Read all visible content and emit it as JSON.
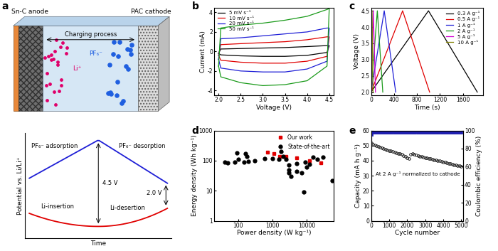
{
  "chart_data": [
    {
      "type": "diagram",
      "panel_label": "a",
      "labels": {
        "anode": "Sn-C anode",
        "cathode": "PAC cathode",
        "process": "Charging process",
        "cation": "Li⁺",
        "anion": "PF₆⁻"
      }
    },
    {
      "type": "diagram",
      "xlabel": "Time",
      "ylabel": "Potential vs. Li/Li⁺",
      "tick_labels": false,
      "annotations": {
        "anion_adsorption": "PF₆⁻ adsorption",
        "anion_desorption": "PF₆⁻ desorption",
        "li_insertion": "Li-insertion",
        "li_desertion": "Li-desertion",
        "upper_voltage": "4.5 V",
        "lower_voltage": "2.0 V"
      }
    },
    {
      "type": "line",
      "panel_label": "b",
      "xlabel": "Voltage (V)",
      "ylabel": "Current (mA)",
      "xlim": [
        1.9,
        4.6
      ],
      "xticks": [
        2.0,
        2.5,
        3.0,
        3.5,
        4.0,
        4.5
      ],
      "ylim": [
        -4.5,
        4.5
      ],
      "yticks": [
        -4,
        -2,
        0,
        2,
        4
      ],
      "legend": "upper left",
      "x": [
        2.0,
        2.05,
        2.5,
        3.0,
        3.5,
        4.0,
        4.45,
        4.5,
        4.45,
        4.0,
        3.5,
        3.0,
        2.5,
        2.05,
        2.0
      ],
      "series": [
        {
          "name": "5 mV s⁻¹",
          "color": "#000000",
          "values": [
            -0.2,
            0.25,
            0.3,
            0.35,
            0.4,
            0.5,
            0.6,
            0.6,
            -0.1,
            -0.4,
            -0.5,
            -0.5,
            -0.45,
            -0.35,
            -0.2
          ]
        },
        {
          "name": "10 mV s⁻¹",
          "color": "#e00000",
          "values": [
            -0.4,
            0.7,
            0.8,
            0.9,
            1.0,
            1.2,
            1.5,
            1.5,
            -0.5,
            -1.0,
            -1.2,
            -1.2,
            -1.1,
            -0.9,
            -0.4
          ]
        },
        {
          "name": "20 mV s⁻¹",
          "color": "#1f1fd6",
          "values": [
            -0.8,
            1.3,
            1.4,
            1.6,
            1.8,
            2.0,
            2.4,
            2.4,
            -1.0,
            -1.8,
            -2.1,
            -2.1,
            -2.0,
            -1.7,
            -0.8
          ]
        },
        {
          "name": "50 mV s⁻¹",
          "color": "#1a9a1a",
          "values": [
            -1.5,
            2.4,
            2.7,
            2.9,
            3.2,
            3.6,
            4.3,
            4.4,
            -1.5,
            -3.0,
            -3.4,
            -3.5,
            -3.2,
            -2.6,
            -1.5
          ]
        }
      ]
    },
    {
      "type": "line",
      "panel_label": "c",
      "xlabel": "Time (s)",
      "ylabel": "Voltage (V)",
      "xlim": [
        0,
        1950
      ],
      "xticks": [
        0,
        400,
        800,
        1200,
        1600
      ],
      "ylim": [
        1.9,
        4.6
      ],
      "yticks": [
        2.0,
        2.5,
        3.0,
        3.5,
        4.0,
        4.5
      ],
      "legend": "upper right",
      "series": [
        {
          "name": "0.3 A g⁻¹",
          "color": "#000000",
          "x": [
            0,
            1000,
            1850
          ],
          "values": [
            2.0,
            4.5,
            2.0
          ]
        },
        {
          "name": "0.5 A g⁻¹",
          "color": "#e00000",
          "x": [
            0,
            550,
            1020
          ],
          "values": [
            2.0,
            4.5,
            2.0
          ]
        },
        {
          "name": "1 A g⁻¹",
          "color": "#1f1fd6",
          "x": [
            0,
            230,
            430
          ],
          "values": [
            2.0,
            4.5,
            2.0
          ]
        },
        {
          "name": "2 A g⁻¹",
          "color": "#1a9a1a",
          "x": [
            0,
            110,
            205
          ],
          "values": [
            2.0,
            4.5,
            2.0
          ]
        },
        {
          "name": "5 A g⁻¹",
          "color": "#d400d4",
          "x": [
            0,
            40,
            78
          ],
          "values": [
            2.0,
            4.5,
            2.0
          ]
        },
        {
          "name": "10 A g⁻¹",
          "color": "#808000",
          "x": [
            0,
            18,
            35
          ],
          "values": [
            2.0,
            4.5,
            2.0
          ]
        }
      ]
    },
    {
      "type": "scatter",
      "panel_label": "d",
      "xlabel": "Power density (W kg⁻¹)",
      "ylabel": "Energy density (Wh kg⁻¹)",
      "log": true,
      "xlim": [
        20,
        60000
      ],
      "xticks": [
        100,
        1000,
        10000
      ],
      "ylim": [
        1,
        1000
      ],
      "yticks": [
        1,
        10,
        100,
        1000
      ],
      "legend": "upper right",
      "series": [
        {
          "name": "Our work",
          "color": "#e00000",
          "marker": "square",
          "x": [
            700,
            1100,
            1600,
            2500,
            5000,
            12000,
            25000
          ],
          "values": [
            190,
            170,
            140,
            140,
            125,
            100,
            85
          ]
        },
        {
          "name": "State-of-the-art",
          "color": "#000000",
          "marker": "circle",
          "x": [
            40,
            50,
            80,
            90,
            100,
            150,
            160,
            180,
            200,
            300,
            600,
            1000,
            1500,
            1800,
            2000,
            2500,
            3000,
            3000,
            3000,
            3500,
            5000,
            5000,
            7000,
            8000,
            9000,
            10000,
            12000,
            15000,
            20000,
            30000,
            55000
          ],
          "values": [
            90,
            85,
            90,
            180,
            110,
            90,
            170,
            140,
            95,
            100,
            120,
            120,
            110,
            200,
            140,
            110,
            70,
            50,
            40,
            30,
            80,
            45,
            40,
            9,
            90,
            60,
            75,
            130,
            110,
            130,
            22
          ]
        }
      ]
    },
    {
      "type": "scatter",
      "panel_label": "e",
      "xlabel": "Cycle number",
      "ylabel": "Capacity (mA h g⁻¹)",
      "y2label": "Coulombic efficiency (%)",
      "annotation": "At 2 A g⁻¹ normalized to cathode",
      "xlim": [
        0,
        5100
      ],
      "xticks": [
        0,
        1000,
        2000,
        3000,
        4000,
        5000
      ],
      "ylim": [
        0,
        60
      ],
      "yticks": [
        0,
        10,
        20,
        30,
        40,
        50,
        60
      ],
      "y2lim": [
        0,
        100
      ],
      "y2ticks": [
        0,
        20,
        40,
        60,
        80,
        100
      ],
      "x": [
        0,
        100,
        200,
        300,
        400,
        500,
        600,
        700,
        800,
        900,
        1000,
        1100,
        1200,
        1300,
        1400,
        1500,
        1600,
        1700,
        1800,
        1900,
        2000,
        2100,
        2200,
        2300,
        2400,
        2500,
        2600,
        2700,
        2800,
        2900,
        3000,
        3100,
        3200,
        3300,
        3400,
        3500,
        3600,
        3700,
        3800,
        3900,
        4000,
        4100,
        4200,
        4300,
        4400,
        4500,
        4600,
        4700,
        4800,
        4900,
        5000
      ],
      "series": [
        {
          "axis": "y",
          "color": "#000000",
          "marker": "open circle",
          "values": [
            52,
            51,
            50.5,
            50,
            49.5,
            49,
            48.5,
            48,
            47.5,
            47,
            46.8,
            46.5,
            46,
            45.5,
            45,
            44.8,
            44.5,
            44,
            43.5,
            43,
            42,
            41.5,
            44,
            44.5,
            44,
            43.8,
            43.5,
            43,
            42.8,
            42.5,
            42,
            41.8,
            41.5,
            41.2,
            41,
            40.5,
            40.2,
            40,
            39.8,
            39.5,
            39,
            38.8,
            38.5,
            38.2,
            38,
            37.5,
            37.2,
            37,
            36.8,
            36.5,
            36
          ]
        },
        {
          "axis": "y2",
          "color": "#1f1fb0",
          "marker": "square",
          "values": [
            96,
            98,
            98,
            98,
            98,
            98,
            98,
            98,
            98,
            98,
            98,
            98,
            98,
            98,
            98,
            98,
            98,
            98,
            98,
            98,
            98,
            98,
            98,
            98,
            98,
            98,
            98,
            98,
            98,
            98,
            98,
            98,
            98,
            98,
            98,
            98,
            98,
            98,
            98,
            98,
            98,
            98,
            98,
            98,
            98,
            98,
            98,
            98,
            98,
            98,
            98
          ]
        }
      ]
    }
  ]
}
